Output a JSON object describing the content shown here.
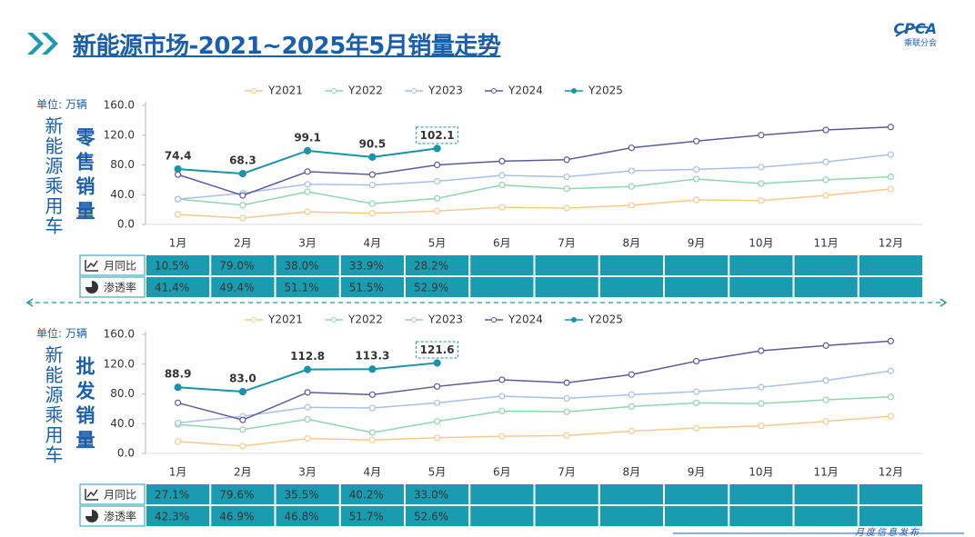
{
  "header": {
    "title": "新能源市场-2021~2025年5月销量走势",
    "logo": "CPCA",
    "logo_sub": "乘联分会"
  },
  "footer": "月度信息发布",
  "chart_data": [
    {
      "type": "line",
      "side_label": "新能源乘用车",
      "ylabel": "零售销量",
      "unit": "单位: 万辆",
      "legend": "top",
      "grid": false,
      "categories": [
        "1月",
        "2月",
        "3月",
        "4月",
        "5月",
        "6月",
        "7月",
        "8月",
        "9月",
        "10月",
        "11月",
        "12月"
      ],
      "ylim": [
        0,
        160
      ],
      "yticks": [
        {
          "value": 0,
          "label": "0.0"
        },
        {
          "value": 40,
          "label": "40.0"
        },
        {
          "value": 80,
          "label": "80.0"
        },
        {
          "value": 120,
          "label": "120.0"
        },
        {
          "value": 160,
          "label": "160.0"
        }
      ],
      "series": [
        {
          "name": "Y2021",
          "color": "#f7c98c",
          "values": [
            13.4,
            8.5,
            17,
            15,
            18,
            23,
            22,
            25.6,
            33,
            32,
            39,
            47.6
          ]
        },
        {
          "name": "Y2022",
          "color": "#8fd6ae",
          "values": [
            34,
            26,
            44,
            28,
            35,
            53,
            48,
            51,
            61,
            55,
            60,
            64
          ]
        },
        {
          "name": "Y2023",
          "color": "#a9bfe8",
          "values": [
            34,
            42,
            54,
            53,
            58,
            66,
            64,
            72,
            74,
            77,
            84,
            94
          ]
        },
        {
          "name": "Y2024",
          "color": "#5b5b9c",
          "values": [
            67,
            39,
            71,
            67,
            80,
            85,
            87,
            103,
            112,
            120,
            127,
            131
          ]
        },
        {
          "name": "Y2025",
          "color": "#1a93a5",
          "values": [
            74.4,
            68.3,
            99.1,
            90.5,
            102.1,
            null,
            null,
            null,
            null,
            null,
            null,
            null
          ],
          "value_labels": [
            "74.4",
            "68.3",
            "99.1",
            "90.5",
            "102.1",
            null,
            null,
            null,
            null,
            null,
            null,
            null
          ]
        }
      ],
      "table": {
        "rows": [
          {
            "label": "月同比",
            "values": [
              "10.5%",
              "79.0%",
              "38.0%",
              "33.9%",
              "28.2%"
            ]
          },
          {
            "label": "渗透率",
            "values": [
              "41.4%",
              "49.4%",
              "51.1%",
              "51.5%",
              "52.9%"
            ]
          }
        ]
      }
    },
    {
      "type": "line",
      "side_label": "新能源乘用车",
      "ylabel": "批发销量",
      "unit": "单位: 万辆",
      "legend": "top",
      "grid": false,
      "categories": [
        "1月",
        "2月",
        "3月",
        "4月",
        "5月",
        "6月",
        "7月",
        "8月",
        "9月",
        "10月",
        "11月",
        "12月"
      ],
      "ylim": [
        0,
        160
      ],
      "yticks": [
        {
          "value": 0,
          "label": "0.0"
        },
        {
          "value": 40,
          "label": "40.0"
        },
        {
          "value": 80,
          "label": "80.0"
        },
        {
          "value": 120,
          "label": "120.0"
        },
        {
          "value": 160,
          "label": "160.0"
        }
      ],
      "series": [
        {
          "name": "Y2021",
          "color": "#f7c98c",
          "values": [
            16,
            10,
            20,
            18,
            21,
            23,
            24,
            30,
            34,
            37,
            43,
            50
          ]
        },
        {
          "name": "Y2022",
          "color": "#8fd6ae",
          "values": [
            39,
            32,
            46,
            28,
            43,
            57,
            56,
            63,
            68,
            67,
            72,
            76
          ]
        },
        {
          "name": "Y2023",
          "color": "#a9bfe8",
          "values": [
            41,
            50,
            62,
            61,
            68,
            77,
            74,
            79,
            83,
            89,
            98,
            111
          ]
        },
        {
          "name": "Y2024",
          "color": "#5b5b9c",
          "values": [
            68,
            45,
            82,
            79,
            90,
            99,
            95,
            106,
            124,
            138,
            145,
            151
          ]
        },
        {
          "name": "Y2025",
          "color": "#1a93a5",
          "values": [
            88.9,
            83.0,
            112.8,
            113.3,
            121.6,
            null,
            null,
            null,
            null,
            null,
            null,
            null
          ],
          "value_labels": [
            "88.9",
            "83.0",
            "112.8",
            "113.3",
            "121.6",
            null,
            null,
            null,
            null,
            null,
            null,
            null
          ]
        }
      ],
      "table": {
        "rows": [
          {
            "label": "月同比",
            "values": [
              "27.1%",
              "79.6%",
              "35.5%",
              "40.2%",
              "33.0%"
            ]
          },
          {
            "label": "渗透率",
            "values": [
              "42.3%",
              "46.9%",
              "46.8%",
              "51.7%",
              "52.6%"
            ]
          }
        ]
      }
    }
  ]
}
